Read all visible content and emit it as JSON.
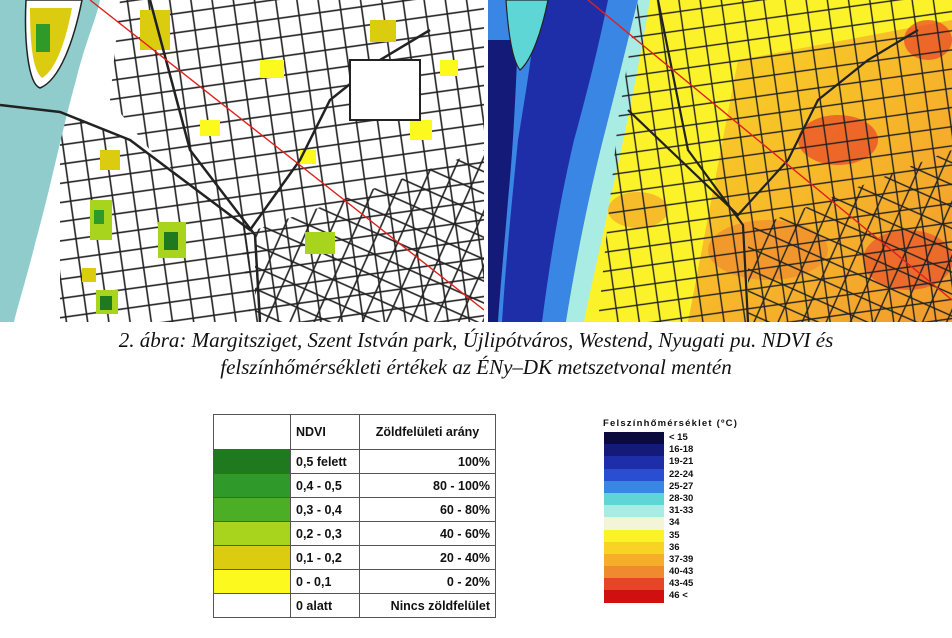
{
  "caption": {
    "line1": "2. ábra:  Margitsziget, Szent István park, Újlipótváros, Westend, Nyugati pu. NDVI és",
    "line2": "felszínhőmérsékleti értékek az ÉNy–DK metszetvonal mentén"
  },
  "ndvi_legend": {
    "header_ndvi": "NDVI",
    "header_ratio": "Zöldfelületi arány",
    "rows": [
      {
        "ndvi": "0,5 felett",
        "ratio": "100%",
        "color": "#1f7a1f"
      },
      {
        "ndvi": "0,4 - 0,5",
        "ratio": "80 - 100%",
        "color": "#2f9a2a"
      },
      {
        "ndvi": "0,3 - 0,4",
        "ratio": "60 - 80%",
        "color": "#4cae24"
      },
      {
        "ndvi": "0,2 - 0,3",
        "ratio": "40 - 60%",
        "color": "#a9d41e"
      },
      {
        "ndvi": "0,1 - 0,2",
        "ratio": "20 - 40%",
        "color": "#dccc10"
      },
      {
        "ndvi": "0 - 0,1",
        "ratio": "0 - 20%",
        "color": "#fbf91e"
      },
      {
        "ndvi": "0 alatt",
        "ratio": "Nincs zöldfelület",
        "color": "#ffffff"
      }
    ]
  },
  "temp_legend": {
    "title": "Felszínhőmérséklet (ºC)",
    "classes": [
      {
        "label": "< 15",
        "color": "#0a0a3c"
      },
      {
        "label": "16-18",
        "color": "#141a78"
      },
      {
        "label": "19-21",
        "color": "#1e2ea8"
      },
      {
        "label": "22-24",
        "color": "#2a4ed2"
      },
      {
        "label": "25-27",
        "color": "#3a86e4"
      },
      {
        "label": "28-30",
        "color": "#5ed6d6"
      },
      {
        "label": "31-33",
        "color": "#a8ece4"
      },
      {
        "label": "34",
        "color": "#f4f4d8"
      },
      {
        "label": "35",
        "color": "#fbf22a"
      },
      {
        "label": "36",
        "color": "#f8d224"
      },
      {
        "label": "37-39",
        "color": "#f6ae2a"
      },
      {
        "label": "40-43",
        "color": "#f08a2e"
      },
      {
        "label": "43-45",
        "color": "#e8442a"
      },
      {
        "label": "46 <",
        "color": "#d01010"
      }
    ]
  },
  "map_colors": {
    "river": "#8fcccb",
    "roads": "#222222",
    "transect": "#e0201c"
  }
}
